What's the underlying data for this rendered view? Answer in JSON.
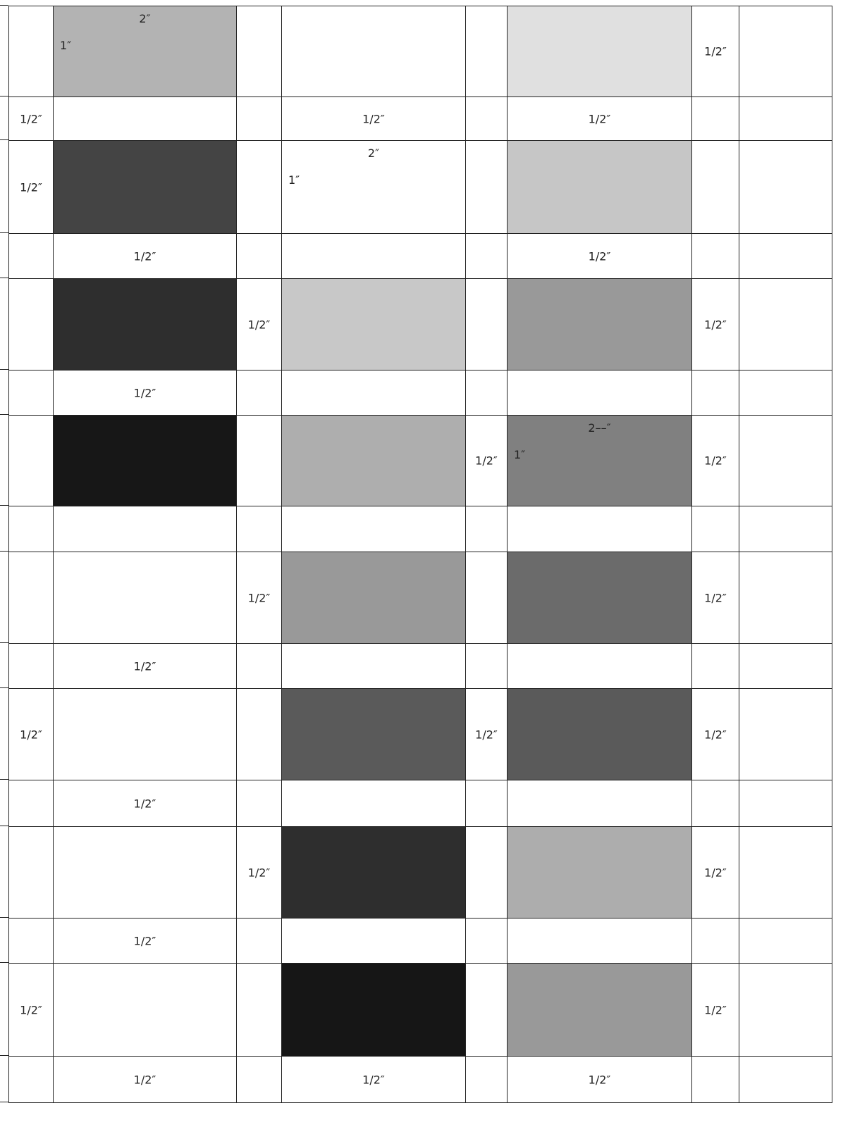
{
  "diagram": {
    "columns": 8,
    "rows": 16,
    "fills": {
      "0-1": "#b3b3b3",
      "0-5": "#e0e0e0",
      "2-1": "#444444",
      "2-5": "#c6c6c6",
      "4-1": "#2e2e2e",
      "4-3": "#c8c8c8",
      "4-5": "#999999",
      "6-1": "#171717",
      "6-3": "#aeaeae",
      "6-5": "#808080",
      "8-3": "#999999",
      "8-5": "#6b6b6b",
      "10-3": "#5a5a5a",
      "10-5": "#5a5a5a",
      "12-3": "#2e2e2e",
      "12-5": "#adadad",
      "14-3": "#161616",
      "14-5": "#999999"
    },
    "labels": [
      {
        "row": 0,
        "col": 1,
        "text": "2″",
        "kind": "width"
      },
      {
        "row": 0,
        "col": 1,
        "text": "1″",
        "kind": "height"
      },
      {
        "row": 0,
        "col": 6,
        "text": "1/2″",
        "kind": "half"
      },
      {
        "row": 1,
        "col": 0,
        "text": "1/2″",
        "kind": "half"
      },
      {
        "row": 1,
        "col": 3,
        "text": "1/2″",
        "kind": "half"
      },
      {
        "row": 1,
        "col": 5,
        "text": "1/2″",
        "kind": "half"
      },
      {
        "row": 2,
        "col": 0,
        "text": "1/2″",
        "kind": "half"
      },
      {
        "row": 2,
        "col": 3,
        "text": "2″",
        "kind": "width"
      },
      {
        "row": 2,
        "col": 3,
        "text": "1″",
        "kind": "height"
      },
      {
        "row": 3,
        "col": 1,
        "text": "1/2″",
        "kind": "half"
      },
      {
        "row": 3,
        "col": 5,
        "text": "1/2″",
        "kind": "half"
      },
      {
        "row": 4,
        "col": 2,
        "text": "1/2″",
        "kind": "half"
      },
      {
        "row": 4,
        "col": 6,
        "text": "1/2″",
        "kind": "half"
      },
      {
        "row": 5,
        "col": 1,
        "text": "1/2″",
        "kind": "half"
      },
      {
        "row": 6,
        "col": 4,
        "text": "1/2″",
        "kind": "half"
      },
      {
        "row": 6,
        "col": 5,
        "text": "2––″",
        "kind": "width"
      },
      {
        "row": 6,
        "col": 5,
        "text": "1″",
        "kind": "height"
      },
      {
        "row": 6,
        "col": 6,
        "text": "1/2″",
        "kind": "half"
      },
      {
        "row": 8,
        "col": 2,
        "text": "1/2″",
        "kind": "half"
      },
      {
        "row": 8,
        "col": 6,
        "text": "1/2″",
        "kind": "half"
      },
      {
        "row": 9,
        "col": 1,
        "text": "1/2″",
        "kind": "half"
      },
      {
        "row": 10,
        "col": 0,
        "text": "1/2″",
        "kind": "half"
      },
      {
        "row": 10,
        "col": 4,
        "text": "1/2″",
        "kind": "half"
      },
      {
        "row": 10,
        "col": 6,
        "text": "1/2″",
        "kind": "half"
      },
      {
        "row": 11,
        "col": 1,
        "text": "1/2″",
        "kind": "half"
      },
      {
        "row": 12,
        "col": 2,
        "text": "1/2″",
        "kind": "half"
      },
      {
        "row": 12,
        "col": 6,
        "text": "1/2″",
        "kind": "half"
      },
      {
        "row": 13,
        "col": 1,
        "text": "1/2″",
        "kind": "half"
      },
      {
        "row": 14,
        "col": 0,
        "text": "1/2″",
        "kind": "half"
      },
      {
        "row": 14,
        "col": 6,
        "text": "1/2″",
        "kind": "half"
      },
      {
        "row": 15,
        "col": 1,
        "text": "1/2″",
        "kind": "half"
      },
      {
        "row": 15,
        "col": 3,
        "text": "1/2″",
        "kind": "half"
      },
      {
        "row": 15,
        "col": 5,
        "text": "1/2″",
        "kind": "half"
      }
    ]
  }
}
